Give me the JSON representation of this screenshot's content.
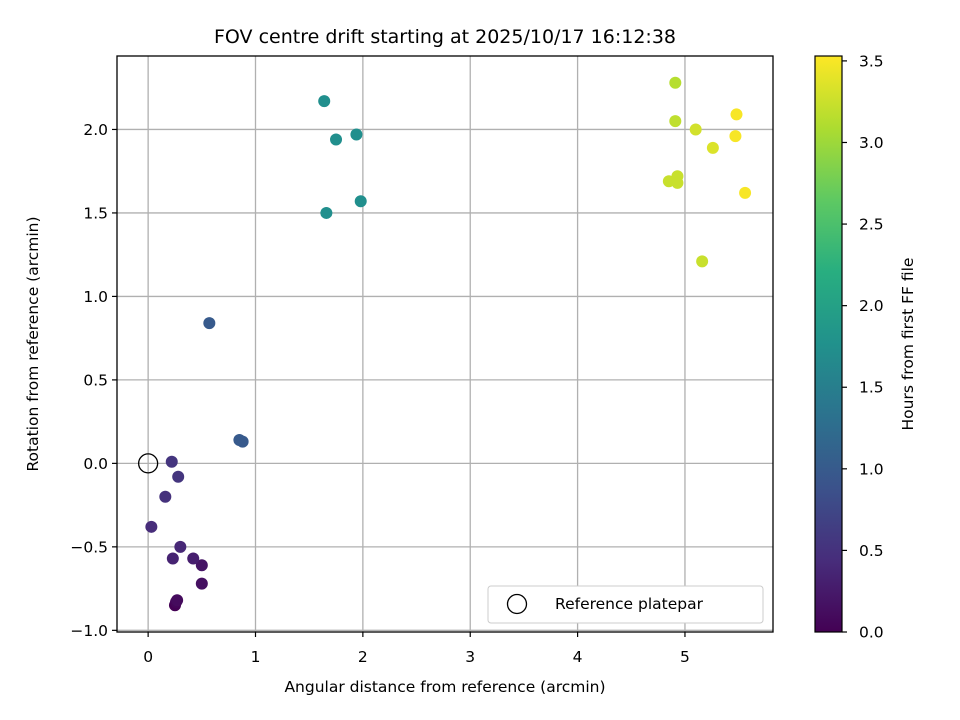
{
  "chart_data": {
    "type": "scatter",
    "title": "FOV centre drift starting at 2025/10/17 16:12:38",
    "xlabel": "Angular distance from reference (arcmin)",
    "ylabel": "Rotation from reference (arcmin)",
    "xlim": [
      -0.29,
      5.82
    ],
    "ylim": [
      -1.01,
      2.44
    ],
    "xticks": [
      0,
      1,
      2,
      3,
      4,
      5
    ],
    "yticks": [
      -1.0,
      -0.5,
      0.0,
      0.5,
      1.0,
      1.5,
      2.0
    ],
    "ytick_labels": [
      "−1.0",
      "−0.5",
      "0.0",
      "0.5",
      "1.0",
      "1.5",
      "2.0"
    ],
    "grid": true,
    "legend": {
      "position": "lower-right",
      "entries": [
        "Reference platepar"
      ]
    },
    "reference_point": {
      "x": 0,
      "y": 0,
      "label": "Reference platepar",
      "marker": "open-circle"
    },
    "colorbar": {
      "label": "Hours from first FF file",
      "range": [
        0.0,
        3.53
      ],
      "ticks": [
        0.0,
        0.5,
        1.0,
        1.5,
        2.0,
        2.5,
        3.0,
        3.5
      ],
      "tick_labels": [
        "0.0",
        "0.5",
        "1.0",
        "1.5",
        "2.0",
        "2.5",
        "3.0",
        "3.5"
      ],
      "colormap": "viridis"
    },
    "points": [
      {
        "x": 0.25,
        "y": -0.85,
        "t": 0.0
      },
      {
        "x": 0.26,
        "y": -0.83,
        "t": 0.05
      },
      {
        "x": 0.27,
        "y": -0.82,
        "t": 0.1
      },
      {
        "x": 0.5,
        "y": -0.72,
        "t": 0.15
      },
      {
        "x": 0.5,
        "y": -0.61,
        "t": 0.2
      },
      {
        "x": 0.42,
        "y": -0.57,
        "t": 0.3
      },
      {
        "x": 0.23,
        "y": -0.57,
        "t": 0.35
      },
      {
        "x": 0.3,
        "y": -0.5,
        "t": 0.4
      },
      {
        "x": 0.03,
        "y": -0.38,
        "t": 0.45
      },
      {
        "x": 0.16,
        "y": -0.2,
        "t": 0.5
      },
      {
        "x": 0.28,
        "y": -0.08,
        "t": 0.55
      },
      {
        "x": 0.22,
        "y": 0.01,
        "t": 0.55
      },
      {
        "x": 0.57,
        "y": 0.84,
        "t": 1.0
      },
      {
        "x": 0.85,
        "y": 0.14,
        "t": 1.0
      },
      {
        "x": 0.88,
        "y": 0.13,
        "t": 1.0
      },
      {
        "x": 1.64,
        "y": 2.17,
        "t": 1.75
      },
      {
        "x": 1.75,
        "y": 1.94,
        "t": 1.75
      },
      {
        "x": 1.94,
        "y": 1.97,
        "t": 1.75
      },
      {
        "x": 1.66,
        "y": 1.5,
        "t": 1.75
      },
      {
        "x": 1.98,
        "y": 1.57,
        "t": 1.75
      },
      {
        "x": 4.91,
        "y": 2.28,
        "t": 3.15
      },
      {
        "x": 4.91,
        "y": 2.05,
        "t": 3.2
      },
      {
        "x": 5.1,
        "y": 2.0,
        "t": 3.3
      },
      {
        "x": 5.26,
        "y": 1.89,
        "t": 3.35
      },
      {
        "x": 4.85,
        "y": 1.69,
        "t": 3.25
      },
      {
        "x": 4.93,
        "y": 1.72,
        "t": 3.25
      },
      {
        "x": 4.93,
        "y": 1.68,
        "t": 3.25
      },
      {
        "x": 5.16,
        "y": 1.21,
        "t": 3.25
      },
      {
        "x": 5.48,
        "y": 2.09,
        "t": 3.5
      },
      {
        "x": 5.47,
        "y": 1.96,
        "t": 3.5
      },
      {
        "x": 5.56,
        "y": 1.62,
        "t": 3.5
      }
    ]
  }
}
